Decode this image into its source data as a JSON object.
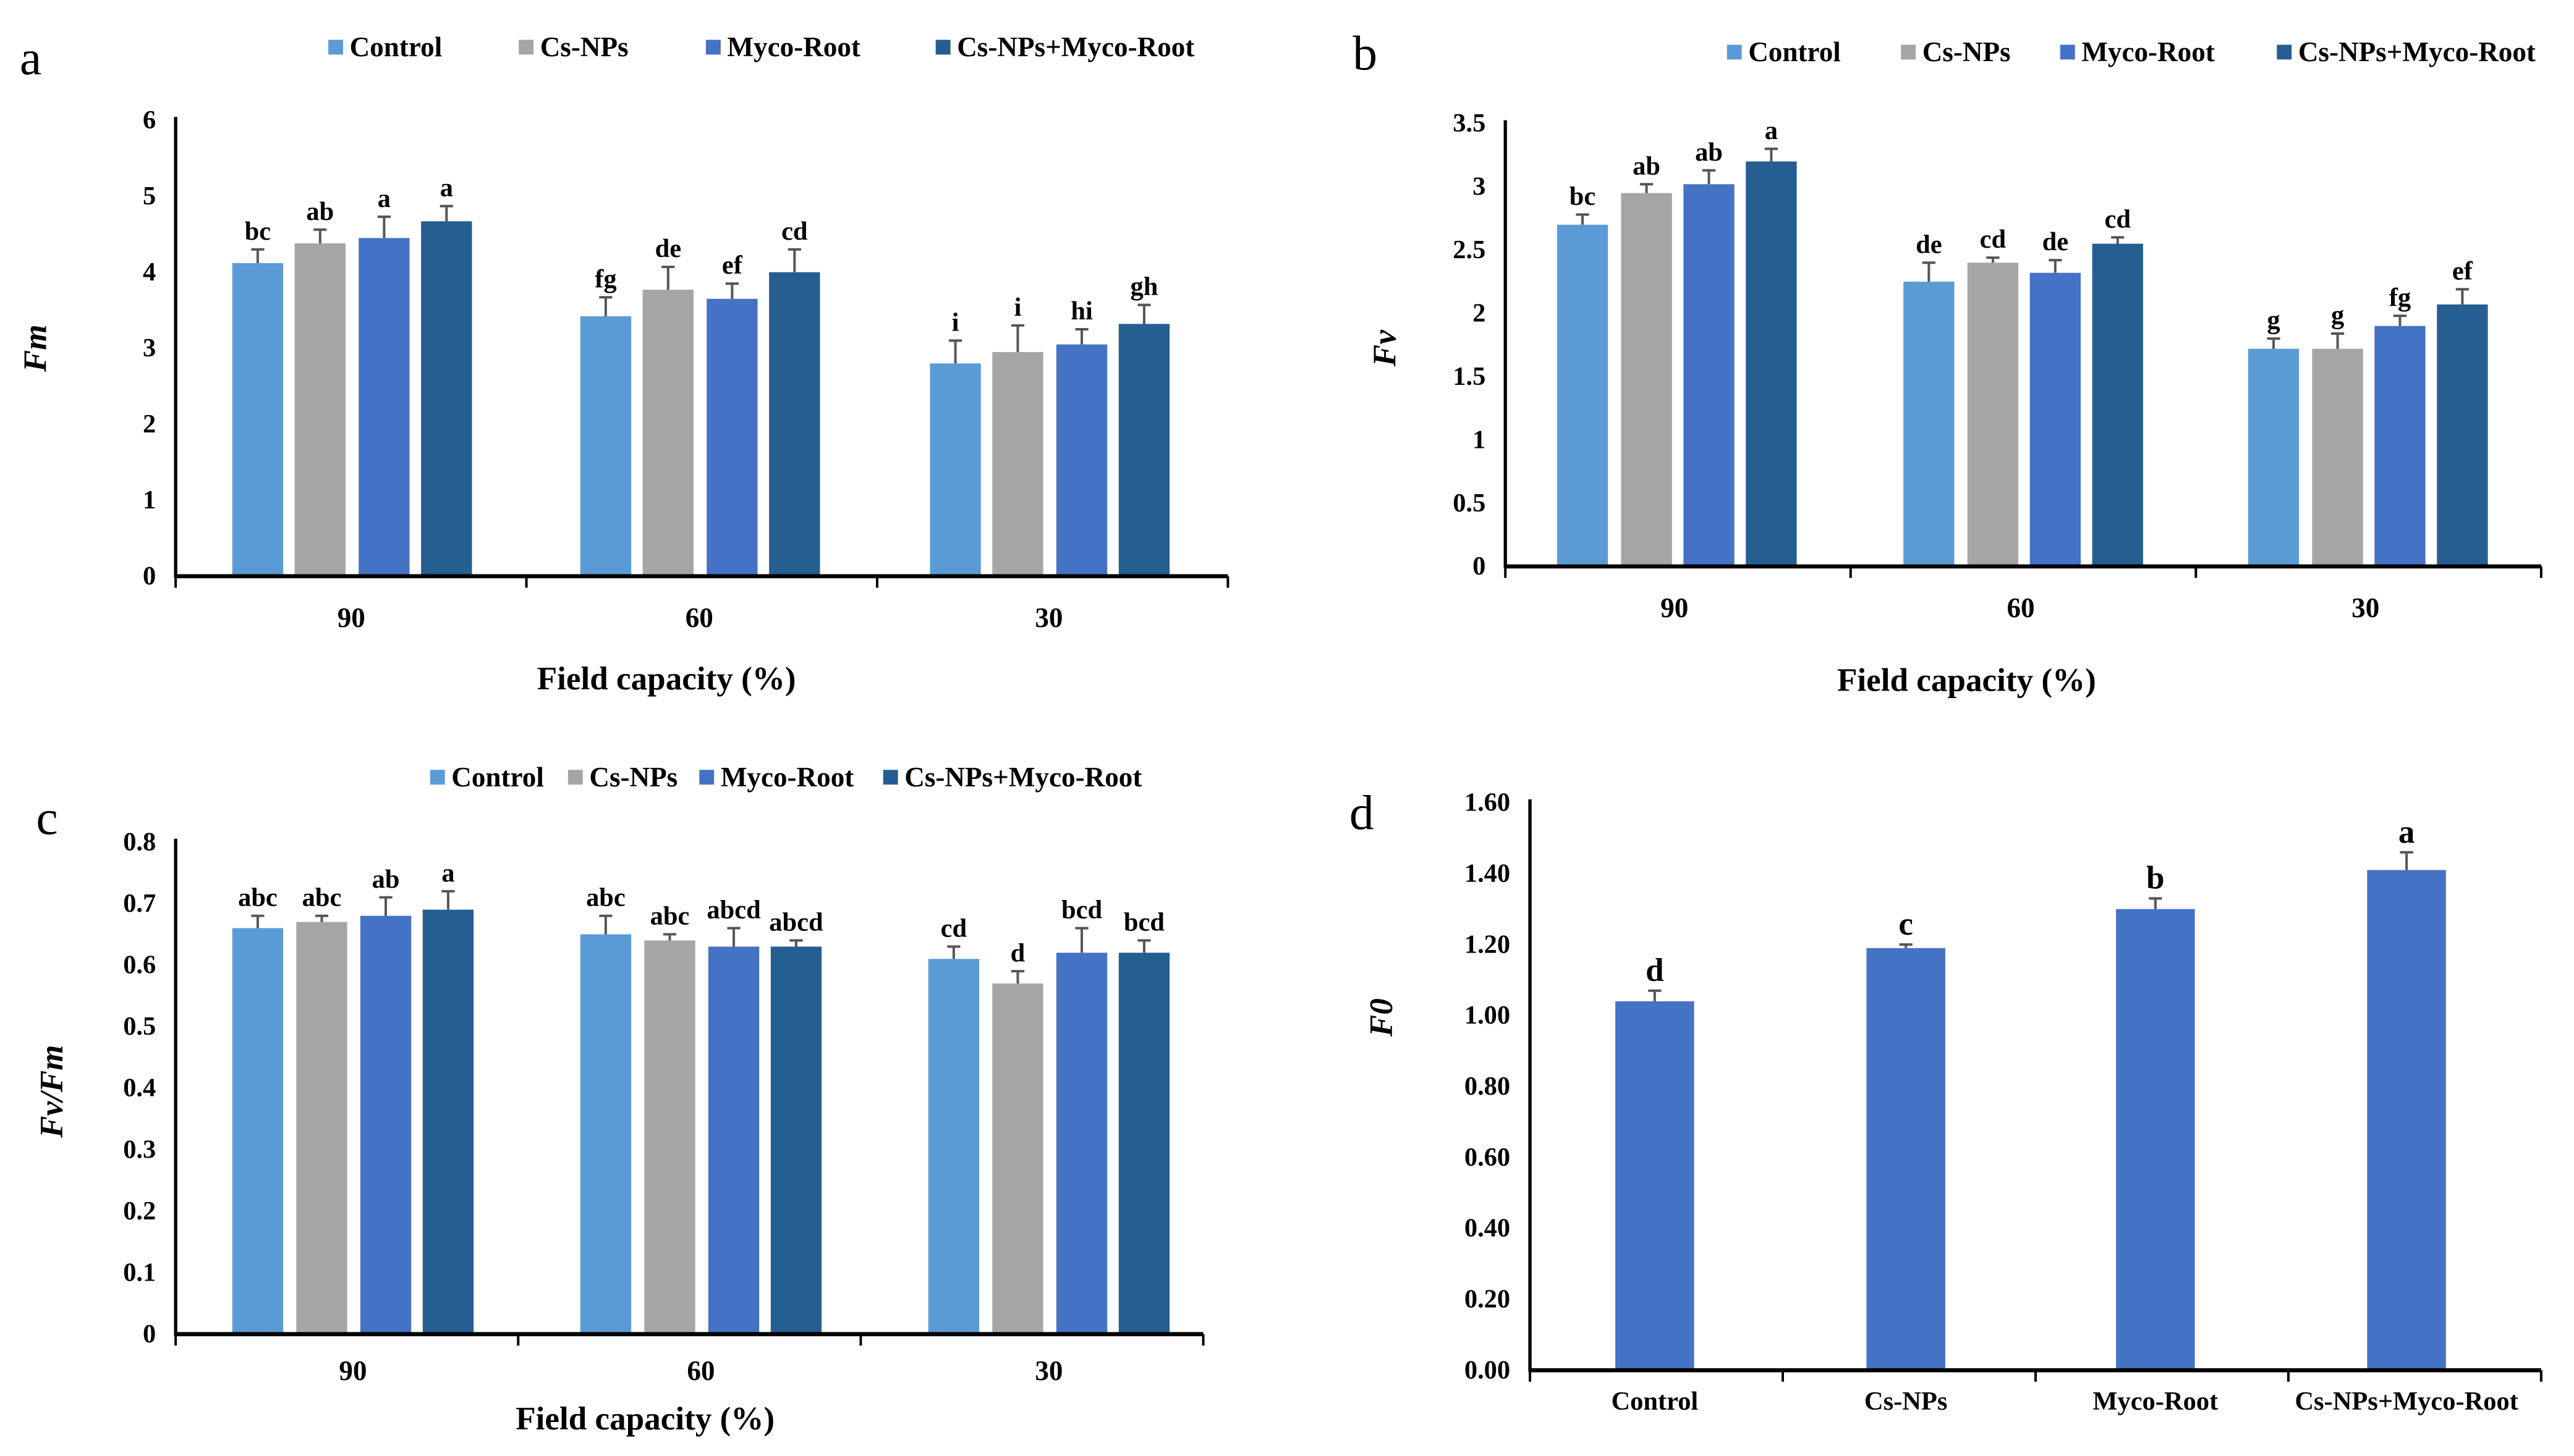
{
  "colors": {
    "Control": "#5b9bd5",
    "Cs-NPs": "#a5a5a5",
    "Myco-Root": "#4472c4",
    "Cs-NPs+Myco-Root": "#255e91",
    "axis": "#000000",
    "errbar": "#555555"
  },
  "chart_data": [
    {
      "panel": "a",
      "type": "bar",
      "categories": [
        "90",
        "60",
        "30"
      ],
      "xlabel": "Field capacity (%)",
      "ylabel": "Fm",
      "ylim": [
        0,
        6
      ],
      "yticks": [
        "0",
        "1",
        "2",
        "3",
        "4",
        "5",
        "6"
      ],
      "ytick_values": [
        0,
        1,
        2,
        3,
        4,
        5,
        6
      ],
      "legend_position": "top",
      "series": [
        {
          "name": "Control",
          "values": [
            4.12,
            3.42,
            2.8
          ],
          "errors": [
            0.18,
            0.25,
            0.3
          ],
          "labels": [
            "bc",
            "fg",
            "i"
          ]
        },
        {
          "name": "Cs-NPs",
          "values": [
            4.38,
            3.77,
            2.95
          ],
          "errors": [
            0.18,
            0.3,
            0.35
          ],
          "labels": [
            "ab",
            "de",
            "i"
          ]
        },
        {
          "name": "Myco-Root",
          "values": [
            4.45,
            3.65,
            3.05
          ],
          "errors": [
            0.28,
            0.2,
            0.2
          ],
          "labels": [
            "a",
            "ef",
            "hi"
          ]
        },
        {
          "name": "Cs-NPs+Myco-Root",
          "values": [
            4.67,
            4.0,
            3.32
          ],
          "errors": [
            0.2,
            0.3,
            0.25
          ],
          "labels": [
            "a",
            "cd",
            "gh"
          ]
        }
      ]
    },
    {
      "panel": "b",
      "type": "bar",
      "categories": [
        "90",
        "60",
        "30"
      ],
      "xlabel": "Field capacity (%)",
      "ylabel": "Fv",
      "ylim": [
        0,
        3.5
      ],
      "yticks": [
        "0",
        "0.5",
        "1",
        "1.5",
        "2",
        "2.5",
        "3",
        "3.5"
      ],
      "ytick_values": [
        0,
        0.5,
        1,
        1.5,
        2,
        2.5,
        3,
        3.5
      ],
      "legend_position": "top",
      "series": [
        {
          "name": "Control",
          "values": [
            2.7,
            2.25,
            1.72
          ],
          "errors": [
            0.08,
            0.15,
            0.08
          ],
          "labels": [
            "bc",
            "de",
            "g"
          ]
        },
        {
          "name": "Cs-NPs",
          "values": [
            2.95,
            2.4,
            1.72
          ],
          "errors": [
            0.07,
            0.04,
            0.12
          ],
          "labels": [
            "ab",
            "cd",
            "g"
          ]
        },
        {
          "name": "Myco-Root",
          "values": [
            3.02,
            2.32,
            1.9
          ],
          "errors": [
            0.11,
            0.1,
            0.08
          ],
          "labels": [
            "ab",
            "de",
            "fg"
          ]
        },
        {
          "name": "Cs-NPs+Myco-Root",
          "values": [
            3.2,
            2.55,
            2.07
          ],
          "errors": [
            0.1,
            0.05,
            0.12
          ],
          "labels": [
            "a",
            "cd",
            "ef"
          ]
        }
      ]
    },
    {
      "panel": "c",
      "type": "bar",
      "categories": [
        "90",
        "60",
        "30"
      ],
      "xlabel": "Field capacity (%)",
      "ylabel": "Fv/Fm",
      "ylim": [
        0,
        0.8
      ],
      "yticks": [
        "0",
        "0.1",
        "0.2",
        "0.3",
        "0.4",
        "0.5",
        "0.6",
        "0.7",
        "0.8"
      ],
      "ytick_values": [
        0,
        0.1,
        0.2,
        0.3,
        0.4,
        0.5,
        0.6,
        0.7,
        0.8
      ],
      "legend_position": "top",
      "series": [
        {
          "name": "Control",
          "values": [
            0.66,
            0.65,
            0.61
          ],
          "errors": [
            0.02,
            0.03,
            0.02
          ],
          "labels": [
            "abc",
            "abc",
            "cd"
          ]
        },
        {
          "name": "Cs-NPs",
          "values": [
            0.67,
            0.64,
            0.57
          ],
          "errors": [
            0.01,
            0.01,
            0.02
          ],
          "labels": [
            "abc",
            "abc",
            "d"
          ]
        },
        {
          "name": "Myco-Root",
          "values": [
            0.68,
            0.63,
            0.62
          ],
          "errors": [
            0.03,
            0.03,
            0.04
          ],
          "labels": [
            "ab",
            "abcd",
            "bcd"
          ]
        },
        {
          "name": "Cs-NPs+Myco-Root",
          "values": [
            0.69,
            0.63,
            0.62
          ],
          "errors": [
            0.03,
            0.01,
            0.02
          ],
          "labels": [
            "a",
            "abcd",
            "bcd"
          ]
        }
      ]
    },
    {
      "panel": "d",
      "type": "bar",
      "categories": [
        "Control",
        "Cs-NPs",
        "Myco-Root",
        "Cs-NPs+Myco-Root"
      ],
      "xlabel": "",
      "ylabel": "F0",
      "ylim": [
        0,
        1.6
      ],
      "yticks": [
        "0.00",
        "0.20",
        "0.40",
        "0.60",
        "0.80",
        "1.00",
        "1.20",
        "1.40",
        "1.60"
      ],
      "ytick_values": [
        0,
        0.2,
        0.4,
        0.6,
        0.8,
        1.0,
        1.2,
        1.4,
        1.6
      ],
      "legend_position": "none",
      "series": [
        {
          "name": "F0",
          "values": [
            1.04,
            1.19,
            1.3,
            1.41
          ],
          "errors": [
            0.03,
            0.01,
            0.03,
            0.05
          ],
          "labels": [
            "d",
            "c",
            "b",
            "a"
          ]
        }
      ]
    }
  ]
}
